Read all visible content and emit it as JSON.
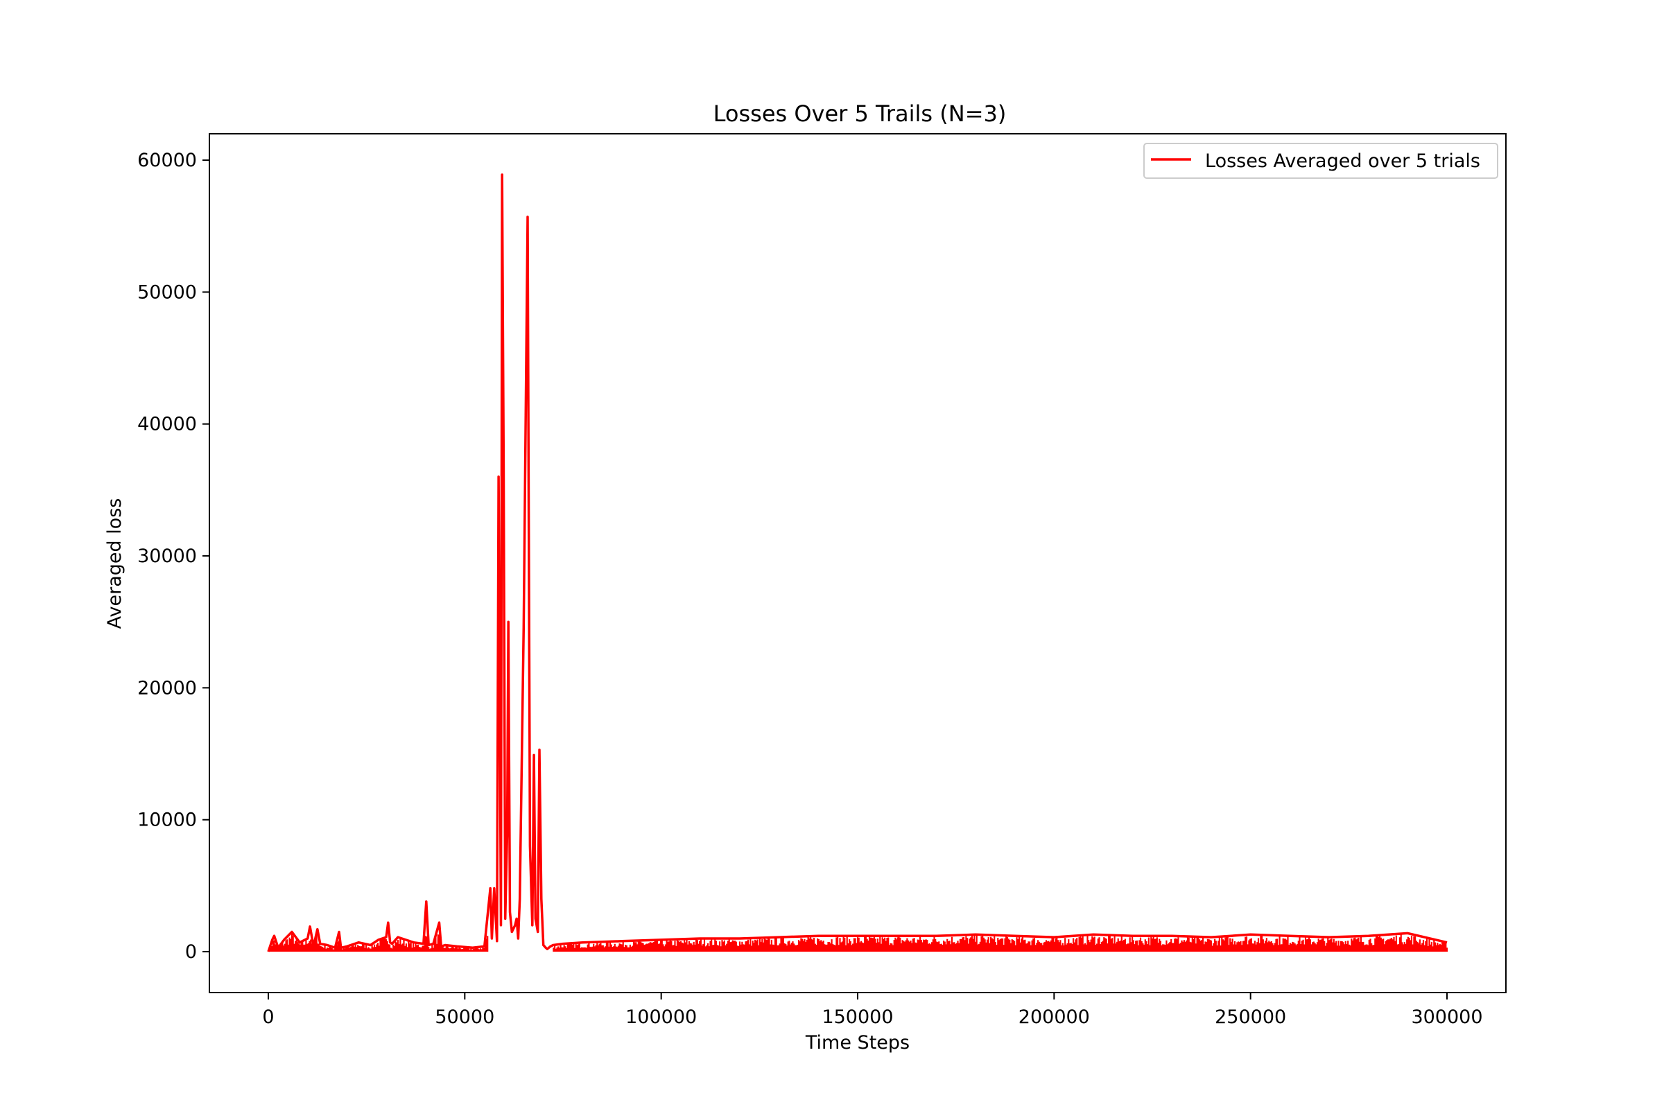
{
  "chart_data": {
    "type": "line",
    "title": "Losses Over 5 Trails (N=3)",
    "xlabel": "Time Steps",
    "ylabel": "Averaged loss",
    "xlim": [
      -15000,
      315000
    ],
    "ylim": [
      -3100,
      62000
    ],
    "xticks": [
      0,
      50000,
      100000,
      150000,
      200000,
      250000,
      300000
    ],
    "xtick_labels": [
      "0",
      "50000",
      "100000",
      "150000",
      "200000",
      "250000",
      "300000"
    ],
    "yticks": [
      0,
      10000,
      20000,
      30000,
      40000,
      50000,
      60000
    ],
    "ytick_labels": [
      "0",
      "10000",
      "20000",
      "30000",
      "40000",
      "50000",
      "60000"
    ],
    "grid": false,
    "legend_position": "upper right",
    "series": [
      {
        "name": "Losses Averaged over 5 trials",
        "color": "#ff0000",
        "x": [
          0,
          1000,
          1500,
          2500,
          4000,
          6000,
          8000,
          10000,
          10600,
          11500,
          12500,
          13200,
          15000,
          17000,
          18000,
          18500,
          20000,
          23000,
          26000,
          28000,
          30000,
          30500,
          31000,
          31500,
          33000,
          35000,
          37000,
          39500,
          40200,
          40800,
          42000,
          43500,
          44000,
          45000,
          48000,
          52000,
          55000,
          56500,
          56900,
          57500,
          58200,
          58600,
          59200,
          59500,
          59900,
          60300,
          60800,
          61100,
          61500,
          62000,
          62800,
          63200,
          63600,
          64000,
          65000,
          66000,
          66600,
          67200,
          67600,
          68000,
          68600,
          69000,
          69500,
          70000,
          70600,
          71000,
          71400,
          71800,
          72500,
          75000,
          80000,
          90000,
          100000,
          110000,
          120000,
          130000,
          140000,
          150000,
          160000,
          170000,
          180000,
          190000,
          200000,
          210000,
          220000,
          230000,
          240000,
          250000,
          260000,
          270000,
          280000,
          290000,
          300000
        ],
        "y": [
          0,
          900,
          1200,
          300,
          900,
          1500,
          700,
          1000,
          1900,
          400,
          1700,
          600,
          500,
          300,
          1500,
          300,
          400,
          700,
          500,
          900,
          1100,
          2200,
          700,
          600,
          1100,
          900,
          700,
          600,
          3800,
          500,
          600,
          2200,
          400,
          500,
          400,
          300,
          400,
          4800,
          1000,
          4800,
          800,
          36000,
          2000,
          58900,
          37000,
          2500,
          9000,
          25000,
          3000,
          1500,
          2000,
          2500,
          1000,
          4000,
          24600,
          55700,
          8000,
          2000,
          14900,
          2500,
          1500,
          15300,
          4000,
          500,
          300,
          200,
          300,
          400,
          500,
          600,
          700,
          800,
          900,
          1000,
          1000,
          1100,
          1200,
          1200,
          1200,
          1200,
          1300,
          1200,
          1100,
          1300,
          1200,
          1200,
          1100,
          1300,
          1200,
          1100,
          1200,
          1400,
          700
        ]
      }
    ]
  }
}
